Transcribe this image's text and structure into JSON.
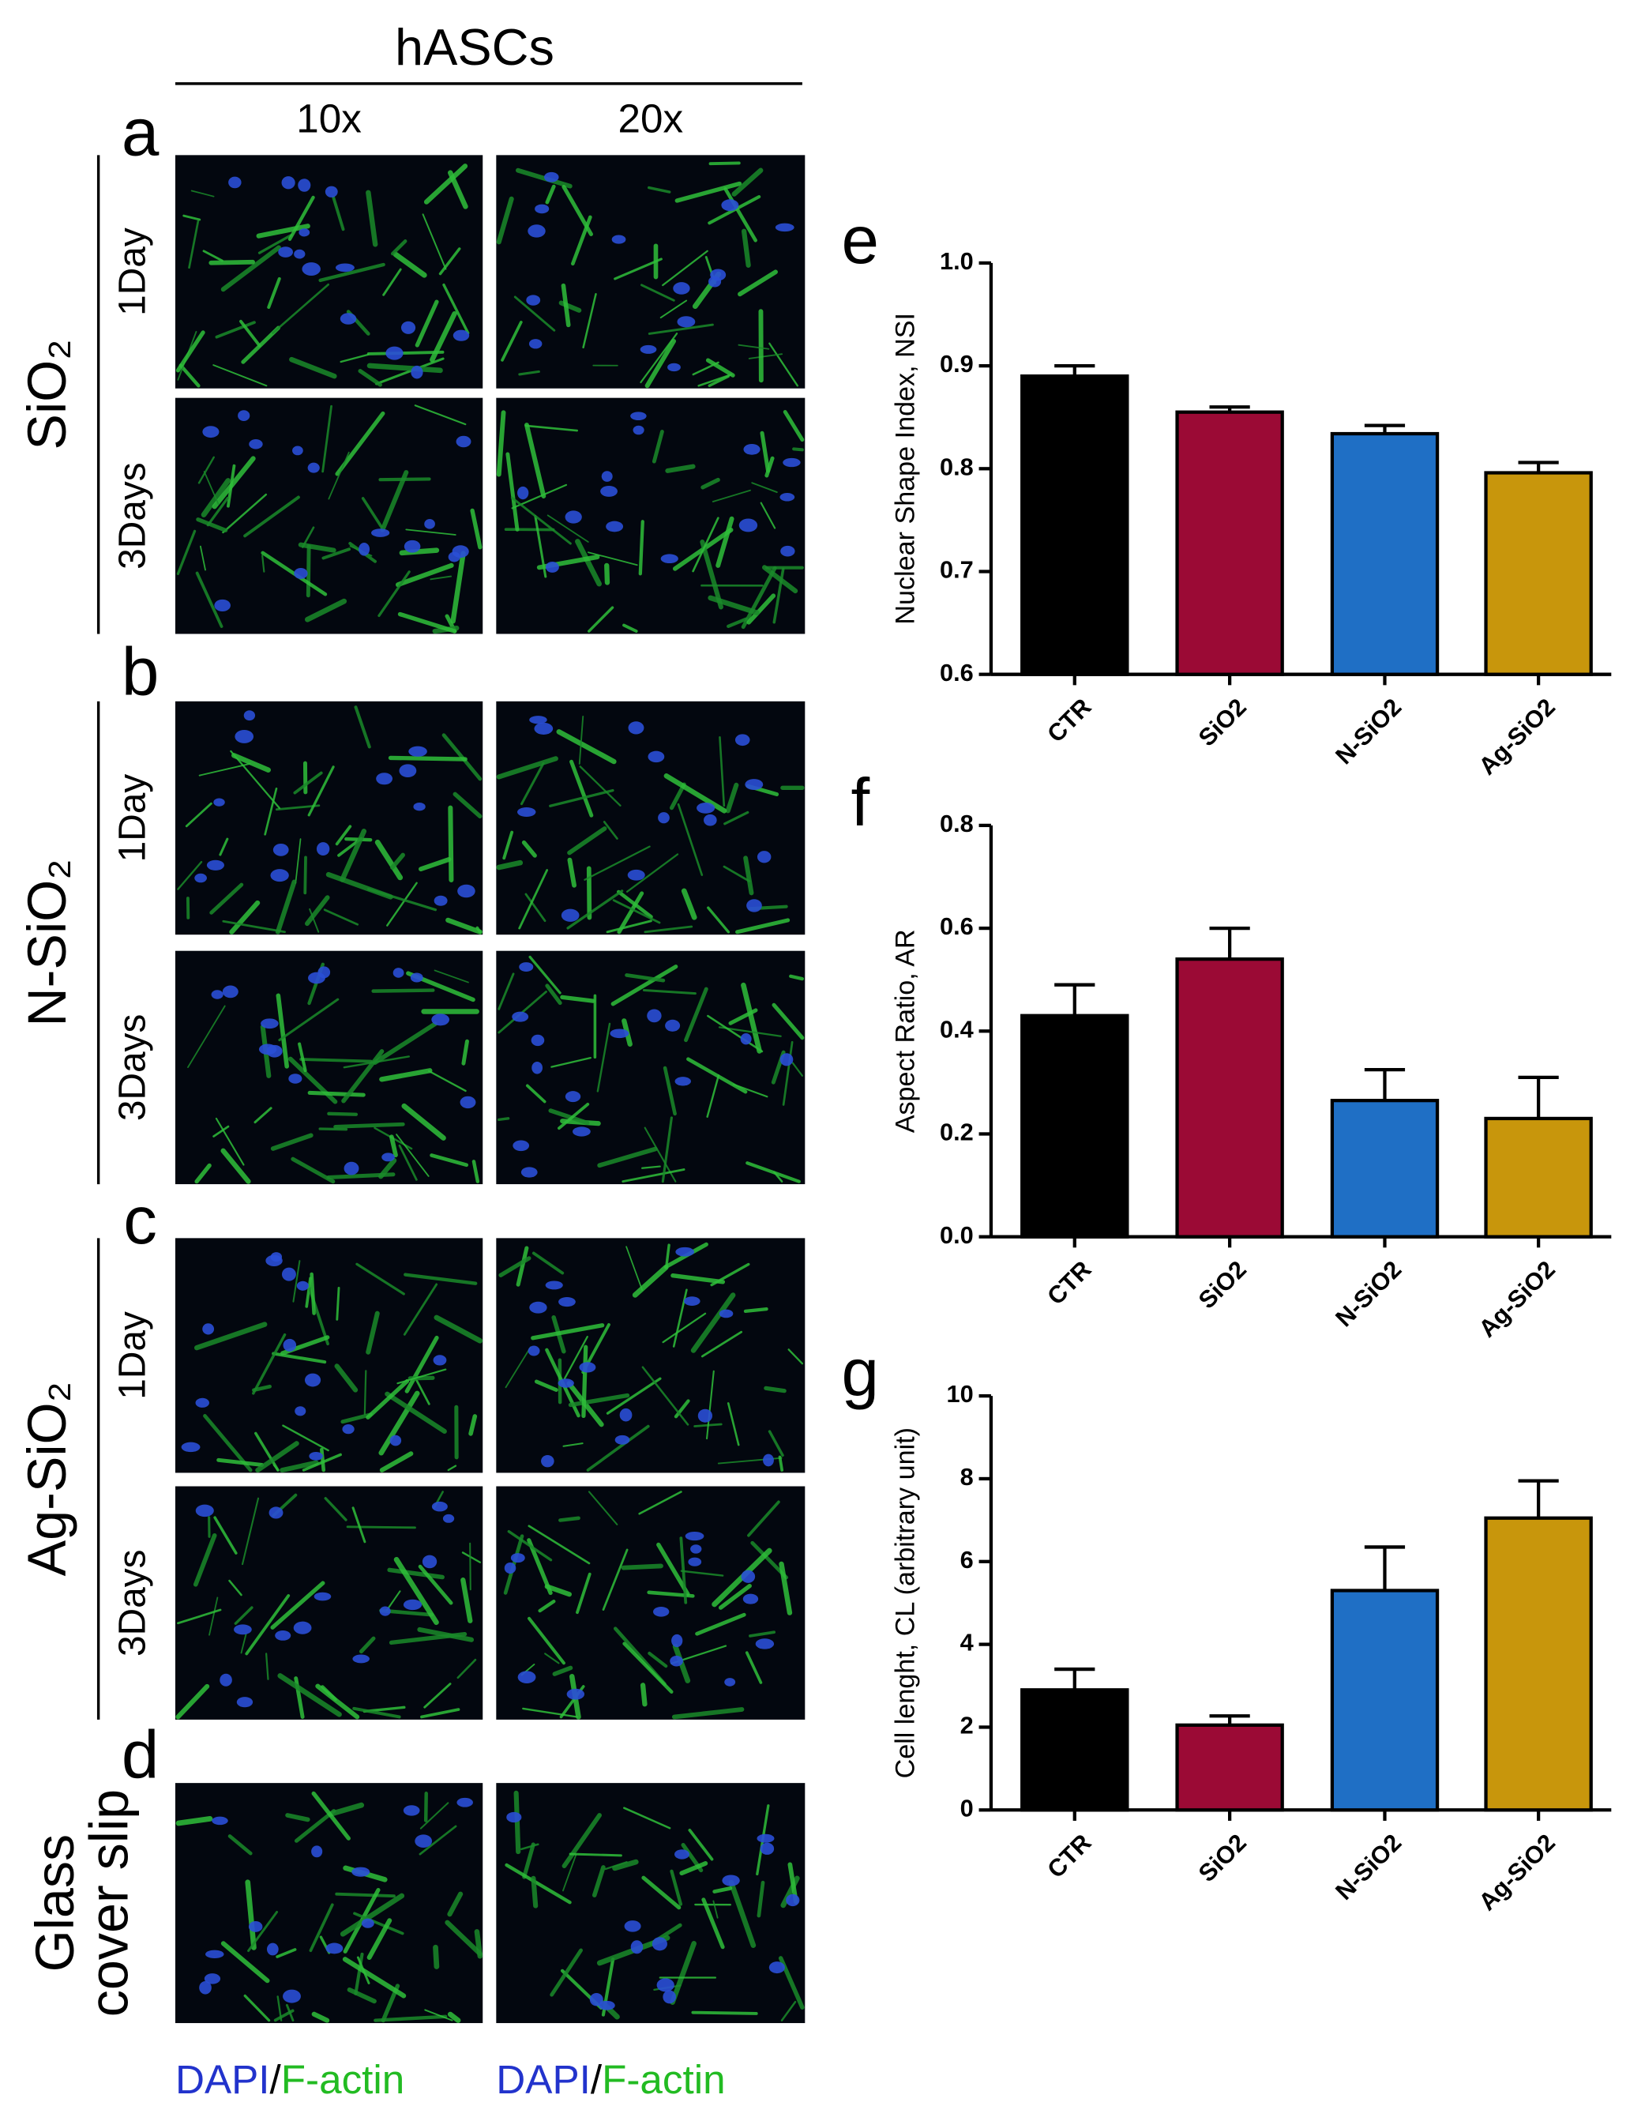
{
  "figure": {
    "title": "hASCs",
    "columns": [
      "10x",
      "20x"
    ],
    "rows": [
      {
        "letter": "a",
        "material_lines": [
          "SiO₂"
        ],
        "days": [
          "1Day",
          "3Days"
        ]
      },
      {
        "letter": "b",
        "material_lines": [
          "N-SiO₂"
        ],
        "days": [
          "1Day",
          "3Days"
        ]
      },
      {
        "letter": "c",
        "material_lines": [
          "Ag-SiO₂"
        ],
        "days": [
          "1Day",
          "3Days"
        ]
      },
      {
        "letter": "d",
        "material_lines": [
          "Glass",
          "cover slip"
        ],
        "days": []
      }
    ],
    "captions": [
      {
        "dapi": "DAPI",
        "slash": "/",
        "factin": "F-actin"
      },
      {
        "dapi": "DAPI",
        "slash": "/",
        "factin": "F-actin"
      }
    ]
  },
  "chart_data": [
    {
      "type": "bar",
      "panel_label": "e",
      "y_label": "Nuclear Shape Index, NSI",
      "categories": [
        "CTR",
        "SiO2",
        "N-SiO2",
        "Ag-SiO2"
      ],
      "values": [
        0.89,
        0.855,
        0.834,
        0.796
      ],
      "errors": [
        0.01,
        0.005,
        0.008,
        0.01
      ],
      "colors": [
        "#000000",
        "#9b0a35",
        "#1f6fc5",
        "#c8960c"
      ],
      "ylim": [
        0.6,
        1.0
      ],
      "yticks": [
        0.6,
        0.7,
        0.8,
        0.9,
        {
          "value": 1,
          "label": "1.0"
        }
      ]
    },
    {
      "type": "bar",
      "panel_label": "f",
      "y_label": "Aspect Ratio, AR",
      "categories": [
        "CTR",
        "SiO2",
        "N-SiO2",
        "Ag-SiO2"
      ],
      "values": [
        0.43,
        0.54,
        0.265,
        0.23
      ],
      "errors": [
        0.06,
        0.06,
        0.06,
        0.08
      ],
      "colors": [
        "#000000",
        "#9b0a35",
        "#1f6fc5",
        "#c8960c"
      ],
      "ylim": [
        0,
        0.8
      ],
      "yticks": [
        {
          "value": 0,
          "label": "0.0"
        },
        0.2,
        0.4,
        0.6,
        0.8
      ]
    },
    {
      "type": "bar",
      "panel_label": "g",
      "y_label": "Cell lenght, CL (arbitrary unit)",
      "categories": [
        "CTR",
        "SiO2",
        "N-SiO2",
        "Ag-SiO2"
      ],
      "values": [
        2.9,
        2.05,
        5.3,
        7.05
      ],
      "errors": [
        0.5,
        0.22,
        1.05,
        0.9
      ],
      "colors": [
        "#000000",
        "#9b0a35",
        "#1f6fc5",
        "#c8960c"
      ],
      "ylim": [
        0,
        10
      ],
      "yticks": [
        0,
        2,
        4,
        6,
        8,
        10
      ]
    }
  ]
}
